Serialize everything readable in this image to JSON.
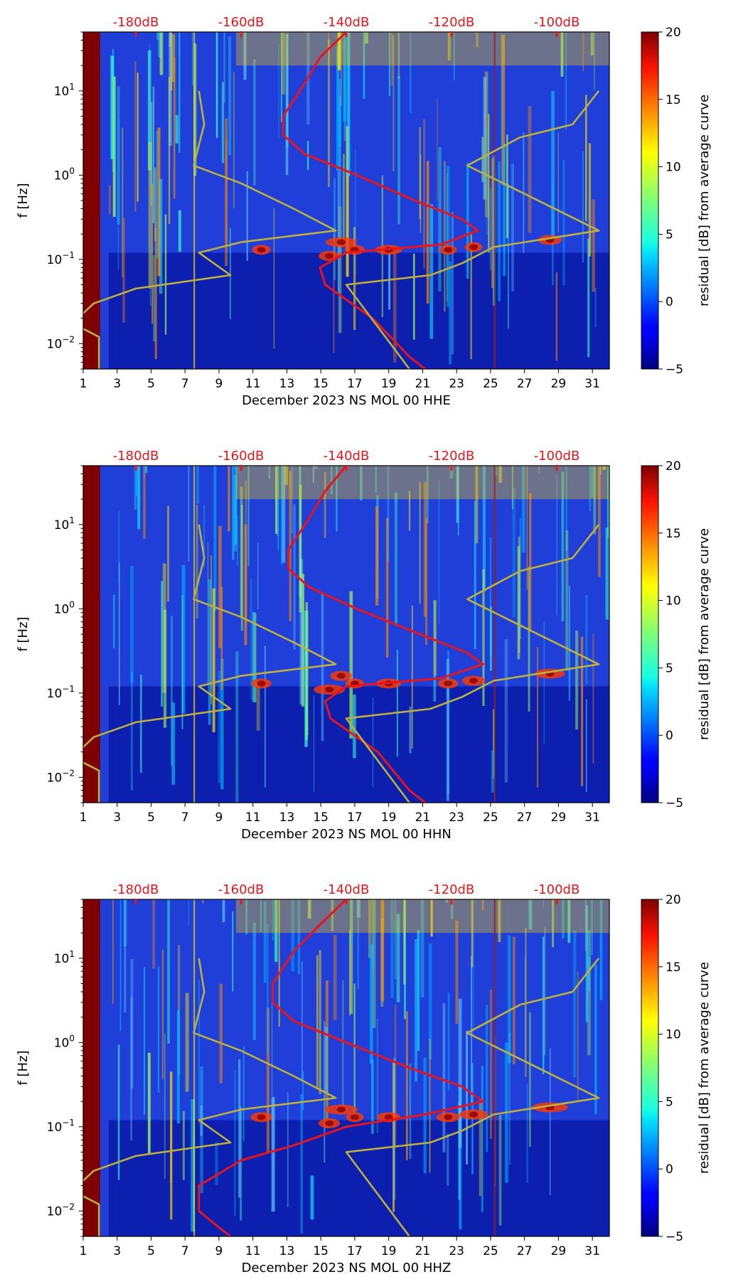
{
  "chart_data": [
    {
      "type": "heatmap",
      "title": "",
      "xlabel": "December 2023 NS MOL 00 HHE",
      "ylabel": "f [Hz]",
      "x_ticks": [
        "1",
        "3",
        "5",
        "7",
        "9",
        "11",
        "13",
        "15",
        "17",
        "19",
        "21",
        "23",
        "25",
        "27",
        "29",
        "31"
      ],
      "y_ticks": [
        {
          "label": "10",
          "exp": "−2",
          "value": 0.01
        },
        {
          "label": "10",
          "exp": "−1",
          "value": 0.1
        },
        {
          "label": "10",
          "exp": "0",
          "value": 1
        },
        {
          "label": "10",
          "exp": "1",
          "value": 10
        }
      ],
      "ylim_hz": [
        0.005,
        50
      ],
      "xlim_days": [
        1,
        32
      ],
      "top_db_labels": [
        "-180dB",
        "-160dB",
        "-140dB",
        "-120dB",
        "-100dB"
      ],
      "colorbar": {
        "label": "residual [dB] from average curve",
        "ticks": [
          "−5",
          "0",
          "5",
          "10",
          "15",
          "20"
        ],
        "range": [
          -5,
          20
        ]
      },
      "series": [
        {
          "name": "average PSD (red)",
          "color": "#e8141c",
          "points_db_hz": [
            [
              -140,
              50
            ],
            [
              -145,
              25
            ],
            [
              -148,
              12
            ],
            [
              -152,
              5
            ],
            [
              -152,
              3
            ],
            [
              -148,
              1.8
            ],
            [
              -138,
              1.0
            ],
            [
              -127,
              0.5
            ],
            [
              -118,
              0.3
            ],
            [
              -115,
              0.22
            ],
            [
              -122,
              0.15
            ],
            [
              -140,
              0.12
            ],
            [
              -145,
              0.08
            ],
            [
              -144,
              0.05
            ],
            [
              -135,
              0.02
            ],
            [
              -128,
              0.007
            ],
            [
              -125,
              0.005
            ]
          ]
        },
        {
          "name": "NLNM/NHNM models (olive)",
          "color": "#bdb03c",
          "points_db_hz": [
            [
              -168,
              10
            ],
            [
              -167,
              4
            ],
            [
              -169,
              1.3
            ],
            [
              -160,
              0.8
            ],
            [
              -150,
              0.4
            ],
            [
              -142,
              0.22
            ],
            [
              -160,
              0.16
            ],
            [
              -168,
              0.12
            ],
            [
              -162,
              0.065
            ],
            [
              -180,
              0.045
            ],
            [
              -188,
              0.03
            ],
            [
              -191,
              0.02
            ],
            [
              -190,
              0.015
            ],
            [
              -187,
              0.012
            ],
            [
              -187,
              0.005
            ]
          ]
        },
        {
          "name": "NHNM (olive)",
          "color": "#bdb03c",
          "points_db_hz": [
            [
              -92,
              10
            ],
            [
              -97,
              4
            ],
            [
              -107,
              2.8
            ],
            [
              -117,
              1.3
            ],
            [
              -92,
              0.22
            ],
            [
              -112,
              0.14
            ],
            [
              -118,
              0.09
            ],
            [
              -124,
              0.065
            ],
            [
              -140,
              0.05
            ],
            [
              -128,
              0.005
            ]
          ]
        }
      ]
    },
    {
      "type": "heatmap",
      "title": "",
      "xlabel": "December 2023 NS MOL 00 HHN",
      "ylabel": "f [Hz]",
      "x_ticks": [
        "1",
        "3",
        "5",
        "7",
        "9",
        "11",
        "13",
        "15",
        "17",
        "19",
        "21",
        "23",
        "25",
        "27",
        "29",
        "31"
      ],
      "y_ticks": [
        {
          "label": "10",
          "exp": "−2",
          "value": 0.01
        },
        {
          "label": "10",
          "exp": "−1",
          "value": 0.1
        },
        {
          "label": "10",
          "exp": "0",
          "value": 1
        },
        {
          "label": "10",
          "exp": "1",
          "value": 10
        }
      ],
      "ylim_hz": [
        0.005,
        50
      ],
      "xlim_days": [
        1,
        32
      ],
      "top_db_labels": [
        "-180dB",
        "-160dB",
        "-140dB",
        "-120dB",
        "-100dB"
      ],
      "colorbar": {
        "label": "residual [dB] from average curve",
        "ticks": [
          "−5",
          "0",
          "5",
          "10",
          "15",
          "20"
        ],
        "range": [
          -5,
          20
        ]
      },
      "series": [
        {
          "name": "average PSD (red)",
          "color": "#e8141c",
          "points_db_hz": [
            [
              -140,
              50
            ],
            [
              -144,
              25
            ],
            [
              -147,
              12
            ],
            [
              -151,
              5
            ],
            [
              -151,
              3
            ],
            [
              -147,
              1.8
            ],
            [
              -138,
              1.0
            ],
            [
              -126,
              0.5
            ],
            [
              -117,
              0.3
            ],
            [
              -114,
              0.22
            ],
            [
              -122,
              0.15
            ],
            [
              -140,
              0.12
            ],
            [
              -144,
              0.08
            ],
            [
              -143,
              0.05
            ],
            [
              -134,
              0.02
            ],
            [
              -128,
              0.007
            ],
            [
              -125,
              0.005
            ]
          ]
        },
        {
          "name": "NLNM/NHNM models (olive)",
          "color": "#bdb03c",
          "points_db_hz": [
            [
              -168,
              10
            ],
            [
              -167,
              4
            ],
            [
              -169,
              1.3
            ],
            [
              -160,
              0.8
            ],
            [
              -150,
              0.4
            ],
            [
              -142,
              0.22
            ],
            [
              -160,
              0.16
            ],
            [
              -168,
              0.12
            ],
            [
              -162,
              0.065
            ],
            [
              -180,
              0.045
            ],
            [
              -188,
              0.03
            ],
            [
              -191,
              0.02
            ],
            [
              -190,
              0.015
            ],
            [
              -187,
              0.012
            ],
            [
              -187,
              0.005
            ]
          ]
        },
        {
          "name": "NHNM (olive)",
          "color": "#bdb03c",
          "points_db_hz": [
            [
              -92,
              10
            ],
            [
              -97,
              4
            ],
            [
              -107,
              2.8
            ],
            [
              -117,
              1.3
            ],
            [
              -92,
              0.22
            ],
            [
              -112,
              0.14
            ],
            [
              -118,
              0.09
            ],
            [
              -124,
              0.065
            ],
            [
              -140,
              0.05
            ],
            [
              -128,
              0.005
            ]
          ]
        }
      ]
    },
    {
      "type": "heatmap",
      "title": "",
      "xlabel": "December 2023 NS MOL 00 HHZ",
      "ylabel": "f [Hz]",
      "x_ticks": [
        "1",
        "3",
        "5",
        "7",
        "9",
        "11",
        "13",
        "15",
        "17",
        "19",
        "21",
        "23",
        "25",
        "27",
        "29",
        "31"
      ],
      "y_ticks": [
        {
          "label": "10",
          "exp": "−2",
          "value": 0.01
        },
        {
          "label": "10",
          "exp": "−1",
          "value": 0.1
        },
        {
          "label": "10",
          "exp": "0",
          "value": 1
        },
        {
          "label": "10",
          "exp": "1",
          "value": 10
        }
      ],
      "ylim_hz": [
        0.005,
        50
      ],
      "xlim_days": [
        1,
        32
      ],
      "top_db_labels": [
        "-180dB",
        "-160dB",
        "-140dB",
        "-120dB",
        "-100dB"
      ],
      "colorbar": {
        "label": "residual [dB] from average curve",
        "ticks": [
          "−5",
          "0",
          "5",
          "10",
          "15",
          "20"
        ],
        "range": [
          -5,
          20
        ]
      },
      "series": [
        {
          "name": "average PSD (red)",
          "color": "#e8141c",
          "points_db_hz": [
            [
              -140,
              50
            ],
            [
              -145,
              25
            ],
            [
              -150,
              12
            ],
            [
              -154,
              5
            ],
            [
              -154,
              3
            ],
            [
              -150,
              1.8
            ],
            [
              -140,
              1.0
            ],
            [
              -128,
              0.5
            ],
            [
              -118,
              0.3
            ],
            [
              -114,
              0.2
            ],
            [
              -125,
              0.14
            ],
            [
              -140,
              0.1
            ],
            [
              -150,
              0.06
            ],
            [
              -160,
              0.04
            ],
            [
              -168,
              0.02
            ],
            [
              -168,
              0.01
            ],
            [
              -165,
              0.007
            ],
            [
              -162,
              0.005
            ]
          ]
        },
        {
          "name": "NLNM/NHNM models (olive)",
          "color": "#bdb03c",
          "points_db_hz": [
            [
              -168,
              10
            ],
            [
              -167,
              4
            ],
            [
              -169,
              1.3
            ],
            [
              -160,
              0.8
            ],
            [
              -150,
              0.4
            ],
            [
              -142,
              0.22
            ],
            [
              -160,
              0.16
            ],
            [
              -168,
              0.12
            ],
            [
              -162,
              0.065
            ],
            [
              -180,
              0.045
            ],
            [
              -188,
              0.03
            ],
            [
              -191,
              0.02
            ],
            [
              -190,
              0.015
            ],
            [
              -187,
              0.012
            ],
            [
              -187,
              0.005
            ]
          ]
        },
        {
          "name": "NHNM (olive)",
          "color": "#bdb03c",
          "points_db_hz": [
            [
              -92,
              10
            ],
            [
              -97,
              4
            ],
            [
              -107,
              2.8
            ],
            [
              -117,
              1.3
            ],
            [
              -92,
              0.22
            ],
            [
              -112,
              0.14
            ],
            [
              -118,
              0.09
            ],
            [
              -124,
              0.065
            ],
            [
              -140,
              0.05
            ],
            [
              -128,
              0.005
            ]
          ]
        }
      ]
    }
  ],
  "db_axis_range": [
    -190,
    -90
  ]
}
